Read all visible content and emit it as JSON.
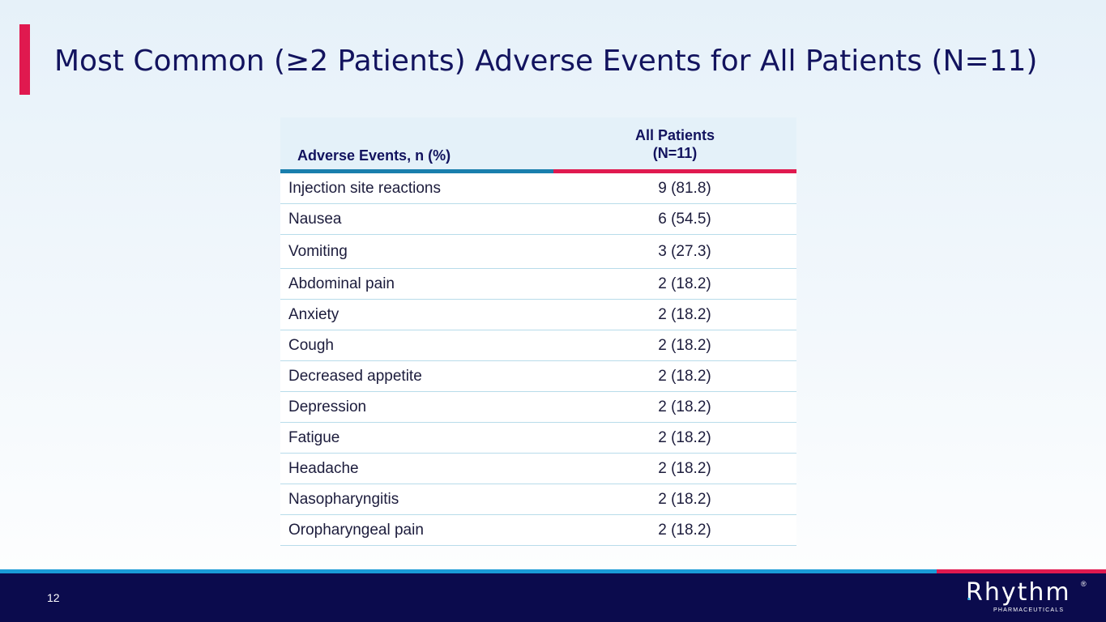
{
  "title": "Most Common (≥2 Patients) Adverse Events for All Patients (N=11)",
  "table": {
    "headers": {
      "col1": "Adverse Events, n (%)",
      "col2_line1": "All Patients",
      "col2_line2": "(N=11)"
    },
    "rows": [
      {
        "event": "Injection site reactions",
        "value": "9 (81.8)"
      },
      {
        "event": "Nausea",
        "value": "6 (54.5)"
      },
      {
        "event": "Vomiting",
        "value": "3 (27.3)"
      },
      {
        "event": "Abdominal pain",
        "value": "2 (18.2)"
      },
      {
        "event": "Anxiety",
        "value": "2 (18.2)"
      },
      {
        "event": "Cough",
        "value": "2 (18.2)"
      },
      {
        "event": "Decreased appetite",
        "value": "2 (18.2)"
      },
      {
        "event": "Depression",
        "value": "2 (18.2)"
      },
      {
        "event": "Fatigue",
        "value": "2 (18.2)"
      },
      {
        "event": "Headache",
        "value": "2 (18.2)"
      },
      {
        "event": "Nasopharyngitis",
        "value": "2 (18.2)"
      },
      {
        "event": "Oropharyngeal pain",
        "value": "2 (18.2)"
      }
    ]
  },
  "footer": {
    "page_number": "12",
    "logo_text": "Rhythm",
    "logo_registered": "®",
    "logo_subtext": "PHARMACEUTICALS"
  },
  "colors": {
    "accent_red": "#e0194f",
    "accent_blue": "#1a9bd7",
    "navy": "#12135e",
    "footer_bg": "#0b0b4d"
  }
}
